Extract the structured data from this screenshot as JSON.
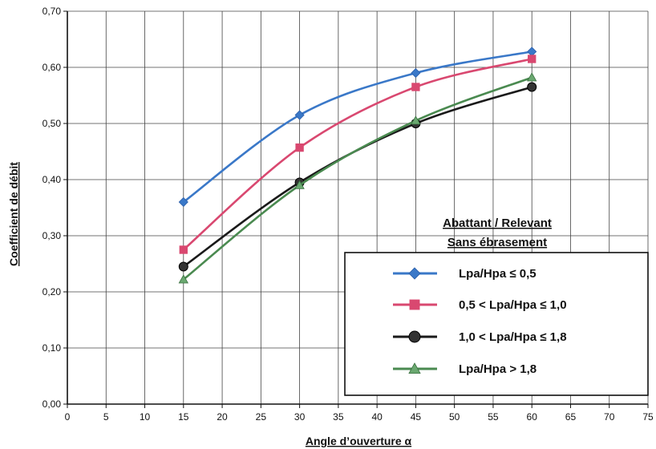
{
  "chart_data": {
    "type": "line",
    "xlabel": "Angle d’ouverture α",
    "ylabel": "Coefficient de débit",
    "xlim": [
      0,
      75
    ],
    "ylim": [
      0,
      0.7
    ],
    "x_ticks": [
      "0",
      "5",
      "10",
      "15",
      "20",
      "25",
      "30",
      "35",
      "40",
      "45",
      "50",
      "55",
      "60",
      "65",
      "70",
      "75"
    ],
    "y_ticks": [
      "0,00",
      "0,10",
      "0,20",
      "0,30",
      "0,40",
      "0,50",
      "0,60",
      "0,70"
    ],
    "grid": true,
    "legend": {
      "placement": "bottom-right",
      "title_line1": "Abattant / Relevant",
      "title_line2": "Sans ébrasement"
    },
    "x": [
      15,
      30,
      45,
      60
    ],
    "series": [
      {
        "name": "Lpa/Hpa ≤ 0,5",
        "values": [
          0.36,
          0.515,
          0.59,
          0.628
        ],
        "color": "#3a78c8",
        "marker": "diamond"
      },
      {
        "name": "0,5 < Lpa/Hpa ≤ 1,0",
        "values": [
          0.275,
          0.457,
          0.565,
          0.615
        ],
        "color": "#d94870",
        "marker": "square"
      },
      {
        "name": "1,0 < Lpa/Hpa ≤ 1,8",
        "values": [
          0.245,
          0.395,
          0.5,
          0.565
        ],
        "color": "#1a1a1a",
        "marker": "circle"
      },
      {
        "name": "Lpa/Hpa > 1,8",
        "values": [
          0.222,
          0.39,
          0.505,
          0.582
        ],
        "color": "#4a8a50",
        "marker": "triangle"
      }
    ]
  }
}
